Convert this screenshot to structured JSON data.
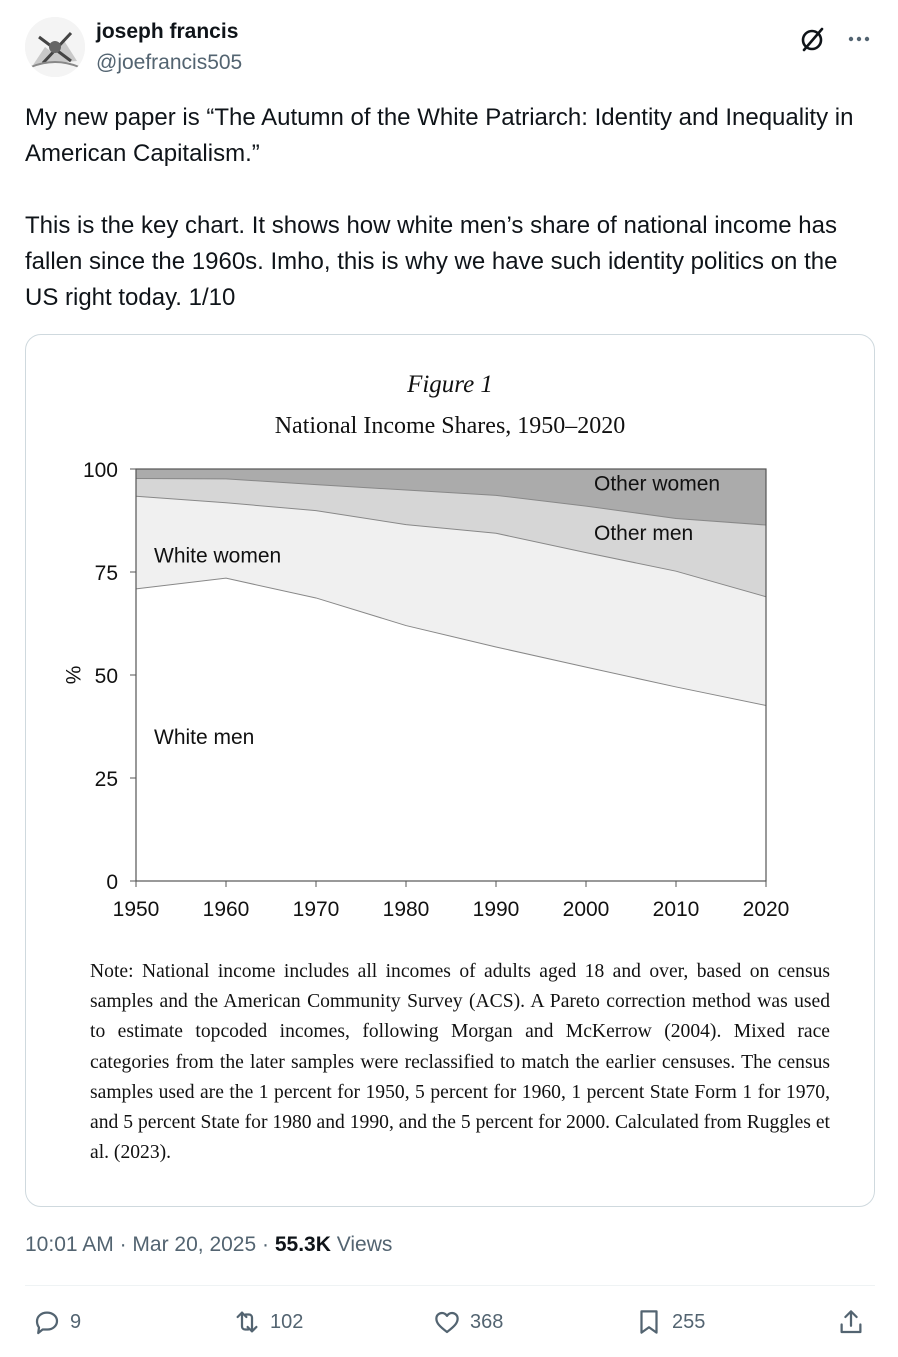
{
  "author": {
    "display_name": "joseph francis",
    "handle": "@joefrancis505"
  },
  "icons": {
    "grok": "grok-slash-circle-icon",
    "more": "more-dots-icon",
    "reply": "reply-bubble-icon",
    "repost": "repost-arrows-icon",
    "like": "heart-icon",
    "bookmark": "bookmark-icon",
    "share": "share-upload-icon"
  },
  "tweet": {
    "text": "My new paper is “The Autumn of the White Patriarch: Identity and Inequality in American Capitalism.”\n\nThis is the key chart. It shows how white men’s share of national income has fallen since the 1960s. Imho, this is why we have such identity politics on the US right today. 1/10"
  },
  "figure": {
    "label": "Figure 1",
    "title": "National Income Shares, 1950–2020",
    "note": "Note: National income includes all incomes of adults aged 18 and over, based on census samples and the American Community Survey (ACS). A Pareto correction method was used to estimate topcoded incomes, following Morgan and McKerrow (2004). Mixed race categories from the later samples were reclassified to match the earlier censuses. The census samples used are the 1 percent for 1950, 5 percent for 1960, 1 percent State Form 1 for 1970, and 5 percent State for 1980 and 1990, and the 5 percent for 2000. Calculated from Ruggles et al. (2023)."
  },
  "chart_data": {
    "type": "area",
    "stacked": true,
    "x": [
      1950,
      1960,
      1970,
      1980,
      1990,
      2000,
      2010,
      2020
    ],
    "xticks": [
      "1950",
      "1960",
      "1970",
      "1980",
      "1990",
      "2000",
      "2010",
      "2020"
    ],
    "yticks": [
      "0",
      "25",
      "50",
      "75",
      "100"
    ],
    "ylabel": "%",
    "ylim": [
      0,
      100
    ],
    "xlim": [
      1950,
      2020
    ],
    "grid": false,
    "series": [
      {
        "name": "White men",
        "values": [
          70.9,
          73.5,
          68.7,
          62.0,
          56.8,
          51.9,
          47.1,
          42.6
        ],
        "color": "#ffffff"
      },
      {
        "name": "White women",
        "values": [
          22.5,
          18.3,
          21.2,
          24.5,
          27.6,
          27.8,
          28.1,
          26.4
        ],
        "color": "#f0f0f0"
      },
      {
        "name": "Other men",
        "values": [
          4.3,
          5.8,
          6.3,
          8.4,
          9.2,
          11.3,
          12.8,
          17.4
        ],
        "color": "#d6d6d6"
      },
      {
        "name": "Other women",
        "values": [
          2.3,
          2.4,
          3.8,
          5.1,
          6.4,
          9.0,
          12.0,
          13.6
        ],
        "color": "#ababab"
      }
    ]
  },
  "timestamp": {
    "time": "10:01 AM",
    "separator": "·",
    "date": "Mar 20, 2025",
    "views_count": "55.3K",
    "views_label": "Views"
  },
  "actions": {
    "replies": "9",
    "reposts": "102",
    "likes": "368",
    "bookmarks": "255"
  }
}
